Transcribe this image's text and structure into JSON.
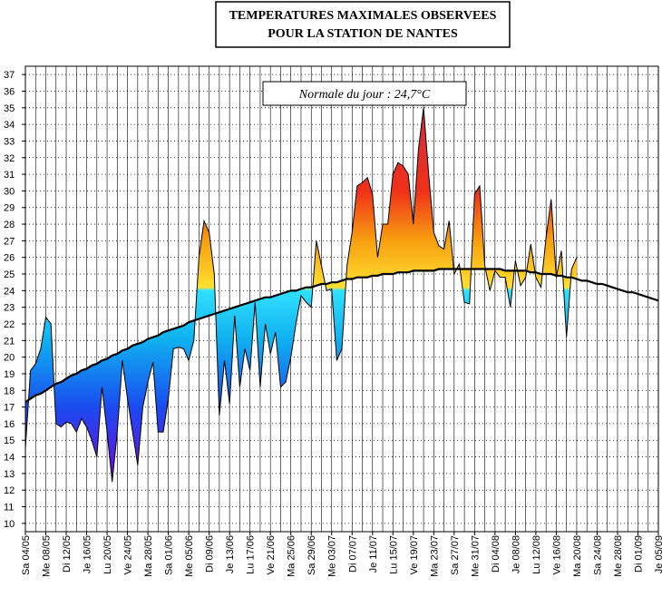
{
  "chart_data": {
    "type": "area-anomaly",
    "title": [
      "TEMPERATURES MAXIMALES OBSERVEES",
      "POUR LA STATION DE NANTES"
    ],
    "annotation": "Normale du jour : 24,7°C",
    "categories": [
      "Sa 04/05",
      null,
      null,
      null,
      "Me 08/05",
      null,
      null,
      null,
      "Di 12/05",
      null,
      null,
      null,
      "Je 16/05",
      null,
      null,
      null,
      "Lu 20/05",
      null,
      null,
      null,
      "Ve 24/05",
      null,
      null,
      null,
      "Ma 28/05",
      null,
      null,
      null,
      "Sa 01/06",
      null,
      null,
      null,
      "Me 05/06",
      null,
      null,
      null,
      "Di 09/06",
      null,
      null,
      null,
      "Je 13/06",
      null,
      null,
      null,
      "Lu 17/06",
      null,
      null,
      null,
      "Ve 21/06",
      null,
      null,
      null,
      "Ma 25/06",
      null,
      null,
      null,
      "Sa 29/06",
      null,
      null,
      null,
      "Me 03/07",
      null,
      null,
      null,
      "Di 07/07",
      null,
      null,
      null,
      "Je 11/07",
      null,
      null,
      null,
      "Lu 15/07",
      null,
      null,
      null,
      "Ve 19/07",
      null,
      null,
      null,
      "Ma 23/07",
      null,
      null,
      null,
      "Sa 27/07",
      null,
      null,
      null,
      "Me 31/07",
      null,
      null,
      null,
      "Di 04/08",
      null,
      null,
      null,
      "Je 08/08",
      null,
      null,
      null,
      "Lu 12/08",
      null,
      null,
      null,
      "Ve 16/08",
      null,
      null,
      null,
      "Ma 20/08",
      null,
      null,
      null,
      "Sa 24/08",
      null,
      null,
      null,
      "Me 28/08",
      null,
      null,
      null,
      "Di 01/09",
      null,
      null,
      null,
      "Je 05/09"
    ],
    "series": [
      {
        "role": "observed",
        "color": "#000000",
        "values": [
          14.5,
          19.2,
          19.6,
          20.5,
          22.4,
          22.0,
          16.0,
          15.8,
          16.1,
          16.0,
          15.5,
          16.3,
          15.8,
          15.0,
          14.0,
          18.2,
          15.5,
          12.5,
          15.5,
          19.8,
          17.5,
          15.5,
          13.5,
          17.0,
          18.5,
          19.7,
          15.5,
          15.5,
          17.5,
          20.5,
          20.6,
          20.5,
          19.8,
          21.0,
          26.0,
          28.2,
          27.5,
          25.0,
          16.5,
          19.8,
          17.2,
          22.5,
          18.2,
          20.5,
          19.2,
          23.3,
          18.2,
          22.0,
          20.2,
          21.5,
          18.2,
          18.5,
          20.0,
          22.0,
          23.7,
          23.3,
          23.0,
          27.0,
          25.5,
          24.0,
          24.1,
          19.8,
          20.5,
          25.5,
          27.5,
          30.3,
          30.5,
          30.8,
          29.8,
          26.0,
          28.0,
          28.0,
          31.0,
          31.7,
          31.5,
          31.0,
          28.0,
          32.5,
          35.0,
          31.0,
          27.5,
          26.7,
          26.5,
          28.2,
          25.0,
          25.6,
          23.3,
          23.2,
          29.8,
          30.3,
          25.5,
          24.0,
          25.2,
          24.8,
          24.8,
          23.0,
          25.8,
          24.3,
          24.8,
          26.8,
          24.8,
          24.2,
          27.2,
          29.5,
          24.8,
          26.4,
          21.2,
          25.3,
          26.0,
          null,
          null,
          null,
          null,
          null,
          null,
          null,
          null,
          null,
          null,
          null,
          null,
          null,
          null,
          null,
          null
        ]
      },
      {
        "role": "normal",
        "color": "#000000",
        "values": [
          17.3,
          17.5,
          17.7,
          17.8,
          18.0,
          18.2,
          18.4,
          18.5,
          18.7,
          18.9,
          19.0,
          19.2,
          19.3,
          19.5,
          19.6,
          19.8,
          19.9,
          20.1,
          20.2,
          20.4,
          20.5,
          20.7,
          20.8,
          20.9,
          21.1,
          21.2,
          21.3,
          21.5,
          21.6,
          21.7,
          21.8,
          21.9,
          22.1,
          22.2,
          22.3,
          22.4,
          22.5,
          22.6,
          22.7,
          22.8,
          22.9,
          23.0,
          23.1,
          23.2,
          23.3,
          23.4,
          23.5,
          23.6,
          23.6,
          23.7,
          23.8,
          23.9,
          24.0,
          24.0,
          24.1,
          24.2,
          24.2,
          24.3,
          24.4,
          24.4,
          24.5,
          24.5,
          24.6,
          24.7,
          24.7,
          24.8,
          24.8,
          24.8,
          24.9,
          24.9,
          25.0,
          25.0,
          25.0,
          25.1,
          25.1,
          25.1,
          25.2,
          25.2,
          25.2,
          25.2,
          25.2,
          25.3,
          25.3,
          25.3,
          25.3,
          25.3,
          25.3,
          25.3,
          25.3,
          25.3,
          25.3,
          25.3,
          25.3,
          25.3,
          25.2,
          25.2,
          25.2,
          25.2,
          25.2,
          25.1,
          25.1,
          25.0,
          25.0,
          25.0,
          24.9,
          24.9,
          24.8,
          24.8,
          24.7,
          24.6,
          24.6,
          24.5,
          24.4,
          24.4,
          24.3,
          24.2,
          24.1,
          24.0,
          23.9,
          23.9,
          23.8,
          23.7,
          23.6,
          23.5,
          23.4
        ]
      }
    ],
    "area_colors": [
      {
        "value": 12,
        "color": "#7a00e0"
      },
      {
        "value": 17,
        "color": "#1a4cf0"
      },
      {
        "value": 21,
        "color": "#10b0f0"
      },
      {
        "value": 24,
        "color": "#30e0ff"
      },
      {
        "value": 24.2,
        "color": "#ffe030"
      },
      {
        "value": 27,
        "color": "#f8a010"
      },
      {
        "value": 30,
        "color": "#f03018"
      },
      {
        "value": 35,
        "color": "#d03040"
      }
    ],
    "ylim": [
      9.5,
      37.5
    ],
    "yticks": [
      10,
      11,
      12,
      13,
      14,
      15,
      16,
      17,
      18,
      19,
      20,
      21,
      22,
      23,
      24,
      25,
      26,
      27,
      28,
      29,
      30,
      31,
      32,
      33,
      34,
      35,
      36,
      37
    ],
    "grid": true
  }
}
